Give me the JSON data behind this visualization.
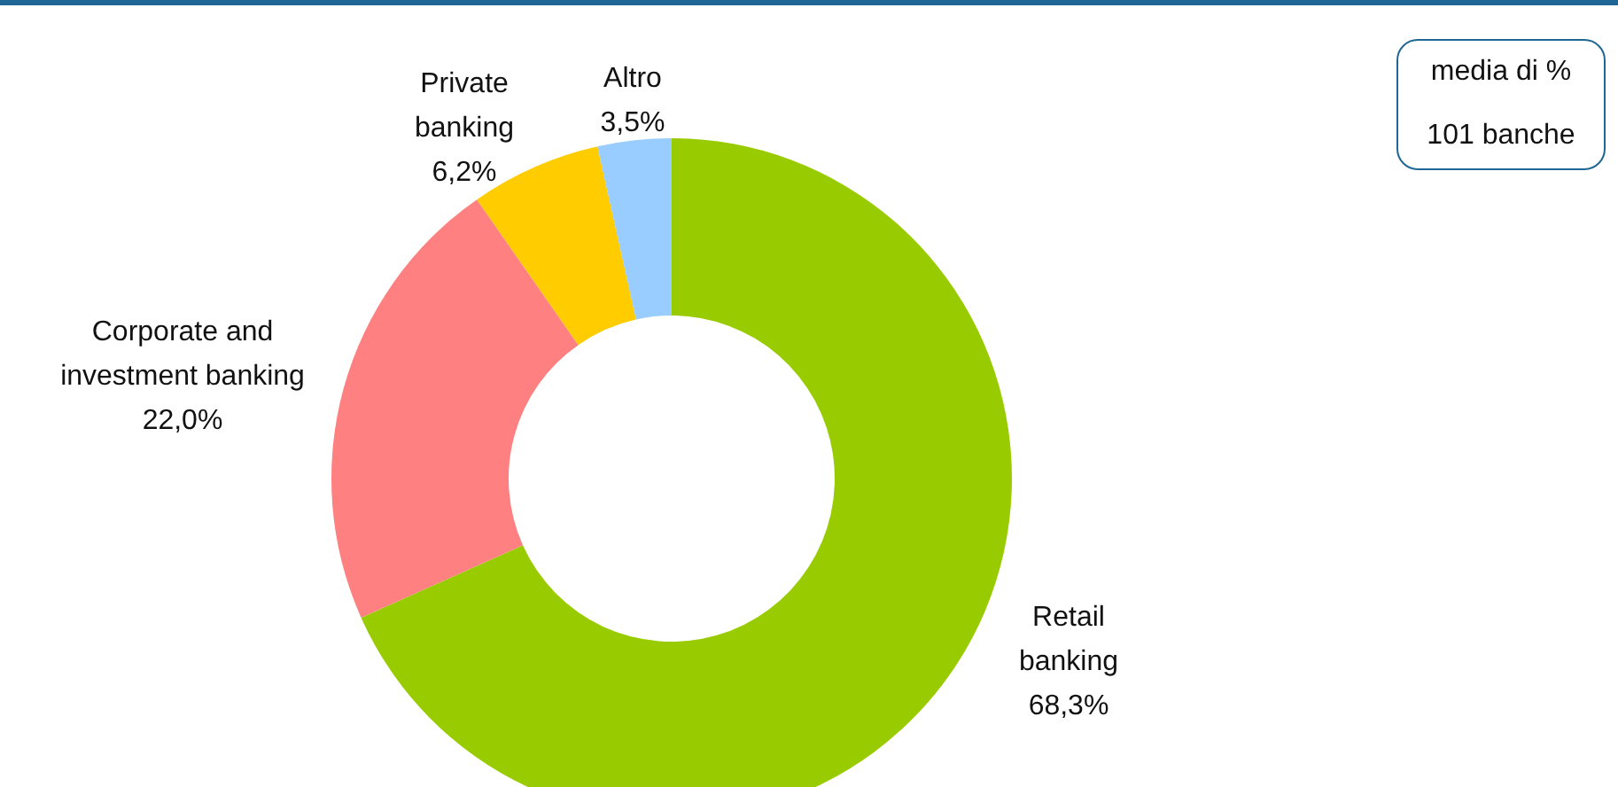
{
  "chart_data": {
    "type": "donut",
    "categories": [
      "Retail banking",
      "Corporate and investment banking",
      "Private banking",
      "Altro"
    ],
    "values": [
      68.3,
      22.0,
      6.2,
      3.5
    ],
    "value_labels": [
      "68,3%",
      "22,0%",
      "6,2%",
      "3,5%"
    ],
    "colors": [
      "#99cc00",
      "#ff8080",
      "#ffcc00",
      "#99ccff"
    ],
    "annotations": [
      "media di %",
      "101 banche"
    ]
  }
}
